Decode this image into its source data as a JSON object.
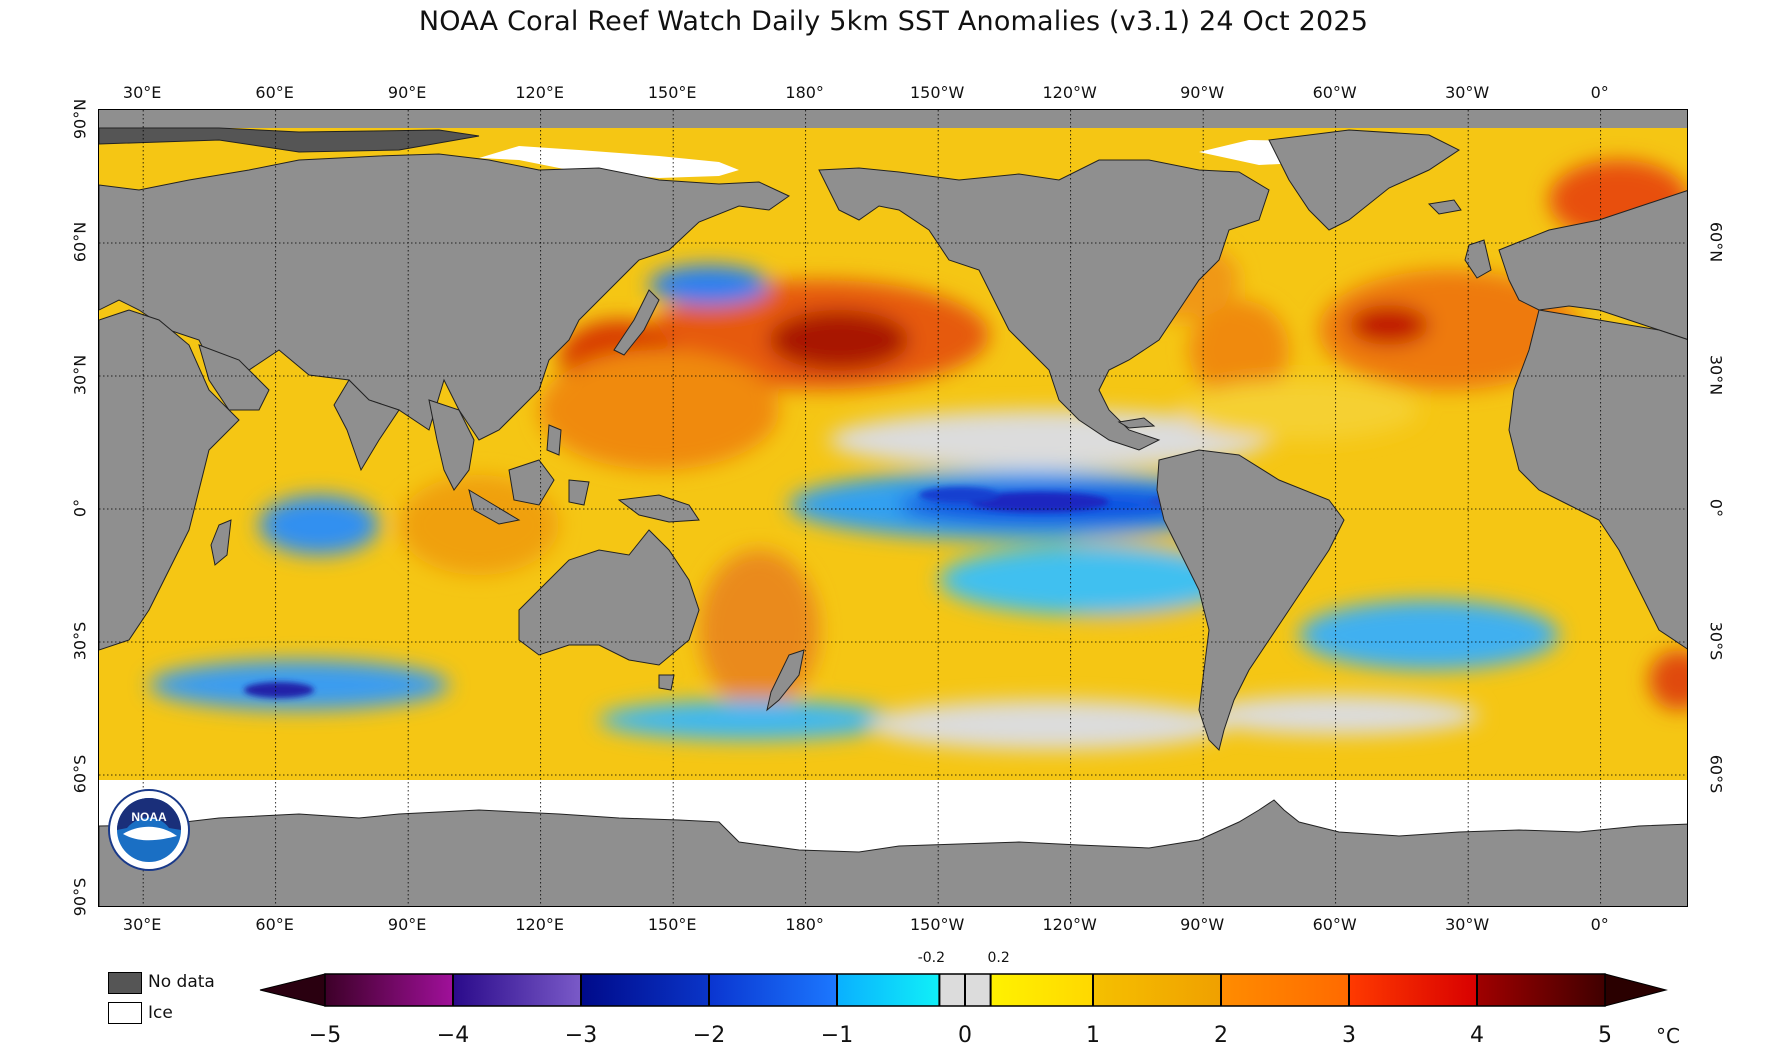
{
  "title": "NOAA Coral Reef Watch Daily 5km SST Anomalies  (v3.1)   24 Oct 2025",
  "map": {
    "projection": "equirectangular",
    "lon_range": [
      20,
      380
    ],
    "lat_range": [
      -90,
      90
    ],
    "gridlines": "dotted",
    "colors": {
      "land": "#8f8f8f",
      "no_data": "#555555",
      "ice": "#ffffff",
      "neutral": "#dcdcdc"
    },
    "lon_labels": [
      "30°E",
      "60°E",
      "90°E",
      "120°E",
      "150°E",
      "180°",
      "150°W",
      "120°W",
      "90°W",
      "60°W",
      "30°W",
      "0°"
    ],
    "lon_values": [
      30,
      60,
      90,
      120,
      150,
      180,
      210,
      240,
      270,
      300,
      330,
      360
    ],
    "lat_labels": [
      "90°N",
      "60°N",
      "30°N",
      "0°",
      "30°S",
      "60°S",
      "90°S"
    ],
    "lat_values": [
      90,
      60,
      30,
      0,
      -30,
      -60,
      -90
    ],
    "right_lat_labels": [
      "60°N",
      "30°N",
      "0°",
      "30°S",
      "60°S"
    ],
    "right_lat_values": [
      60,
      30,
      0,
      -30,
      -60
    ],
    "logo": "noaa-logo"
  },
  "legend": {
    "no_data_label": "No data",
    "ice_label": "Ice"
  },
  "colorbar": {
    "unit": "°C",
    "tick_labels": [
      "−5",
      "−4",
      "−3",
      "−2",
      "−1",
      "0",
      "1",
      "2",
      "3",
      "4",
      "5"
    ],
    "tick_values": [
      -5,
      -4,
      -3,
      -2,
      -1,
      0,
      1,
      2,
      3,
      4,
      5
    ],
    "small_labels": [
      "-0.2",
      "0.2"
    ],
    "small_values": [
      -0.2,
      0.2
    ],
    "min_color": "#2a0010",
    "max_color": "#2a0000",
    "segments": [
      {
        "from": -5,
        "to": -4,
        "start": "#3d0028",
        "end": "#a0109a"
      },
      {
        "from": -4,
        "to": -3,
        "start": "#2a0a8a",
        "end": "#7a5ac8"
      },
      {
        "from": -3,
        "to": -2,
        "start": "#000a8a",
        "end": "#0a35c8"
      },
      {
        "from": -2,
        "to": -1,
        "start": "#0a35d0",
        "end": "#1c78ff"
      },
      {
        "from": -1,
        "to": -0.2,
        "start": "#0ab0ff",
        "end": "#10f0f8"
      },
      {
        "from": -0.2,
        "to": 0.2,
        "start": "#dcdcdc",
        "end": "#dcdcdc"
      },
      {
        "from": 0.2,
        "to": 1,
        "start": "#fff200",
        "end": "#ffd800"
      },
      {
        "from": 1,
        "to": 2,
        "start": "#f5c000",
        "end": "#f0a000"
      },
      {
        "from": 2,
        "to": 3,
        "start": "#ff8c00",
        "end": "#ff6a00"
      },
      {
        "from": 3,
        "to": 4,
        "start": "#ff3a00",
        "end": "#d80000"
      },
      {
        "from": 4,
        "to": 5,
        "start": "#a00000",
        "end": "#400000"
      }
    ]
  }
}
